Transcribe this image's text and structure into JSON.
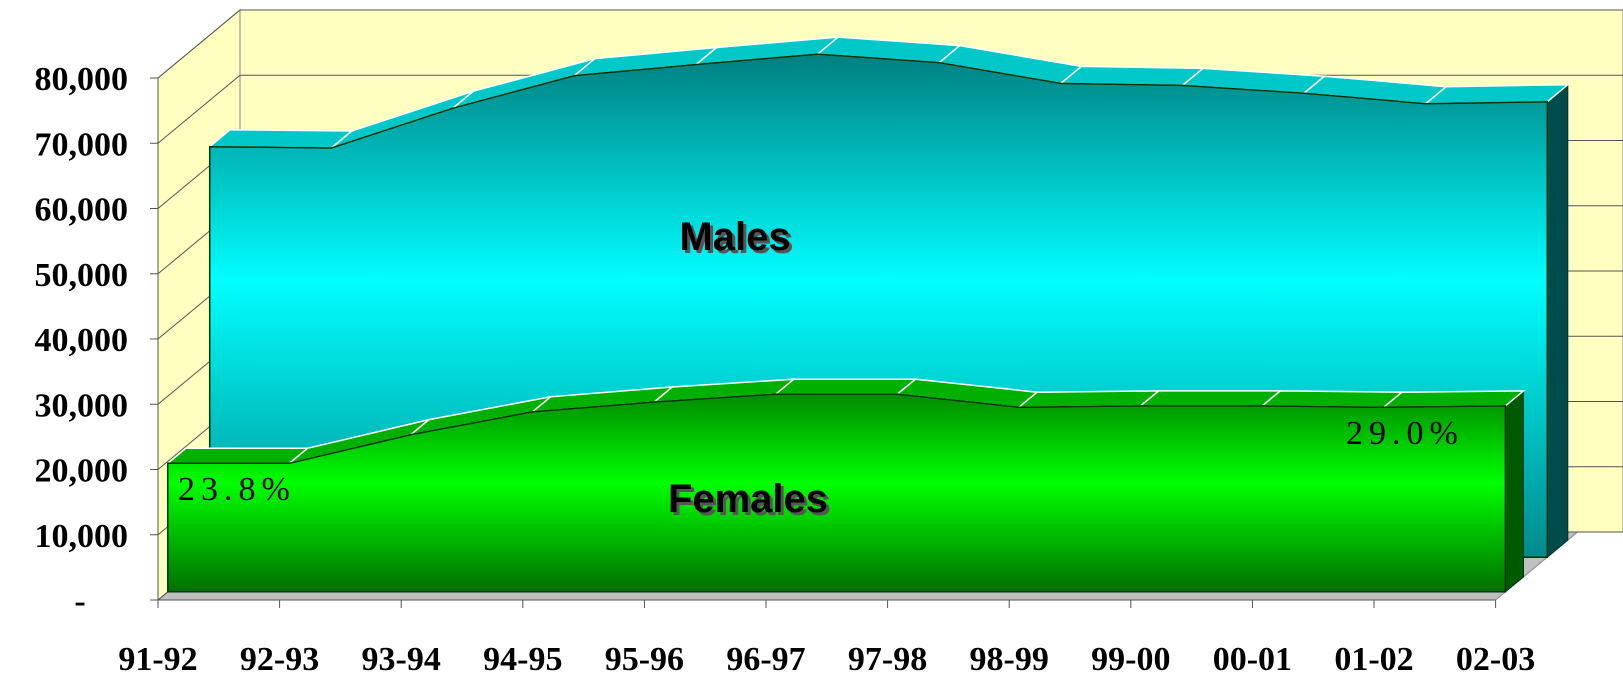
{
  "chart_data": {
    "type": "area3d",
    "categories": [
      "91-92",
      "92-93",
      "93-94",
      "94-95",
      "95-96",
      "96-97",
      "97-98",
      "98-99",
      "99-00",
      "00-01",
      "01-02",
      "02-03"
    ],
    "series": [
      {
        "name": "Females",
        "color": "#00ff00",
        "values": [
          19700,
          19700,
          24100,
          27600,
          29100,
          30300,
          30300,
          28300,
          28500,
          28500,
          28300,
          28500
        ]
      },
      {
        "name": "Males",
        "color": "#00ffff",
        "values": [
          62900,
          62700,
          68800,
          73800,
          75500,
          77100,
          75800,
          72600,
          72300,
          71100,
          69500,
          69800
        ]
      }
    ],
    "ylim": [
      0,
      80000
    ],
    "yticks": [
      {
        "value": 0,
        "label": "-"
      },
      {
        "value": 10000,
        "label": "10,000"
      },
      {
        "value": 20000,
        "label": "20,000"
      },
      {
        "value": 30000,
        "label": "30,000"
      },
      {
        "value": 40000,
        "label": "40,000"
      },
      {
        "value": 50000,
        "label": "50,000"
      },
      {
        "value": 60000,
        "label": "60,000"
      },
      {
        "value": 70000,
        "label": "70,000"
      },
      {
        "value": 80000,
        "label": "80,000"
      }
    ],
    "grid": true,
    "annotations": [
      "Males",
      "Females",
      "23.8%",
      "29.0%"
    ]
  }
}
